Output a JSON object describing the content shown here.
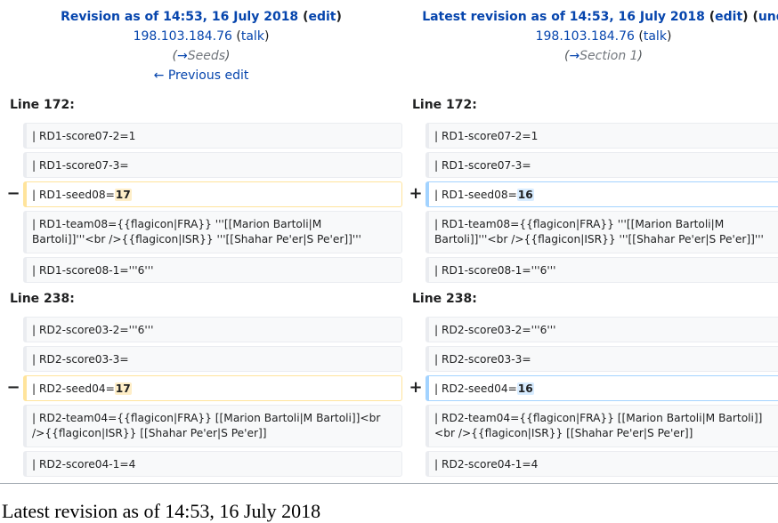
{
  "left": {
    "title": "Revision as of 14:53, 16 July 2018",
    "edit": "edit",
    "ip": "198.103.184.76",
    "talk": "talk",
    "comment_arrow": "→",
    "comment_section": "Seeds",
    "nav": "← Previous edit"
  },
  "right": {
    "title": "Latest revision as of 14:53, 16 July 2018",
    "edit": "edit",
    "undo": "und",
    "ip": "198.103.184.76",
    "talk": "talk",
    "comment_arrow": "→",
    "comment_section": "Section 1"
  },
  "blocks": [
    {
      "line_label_left": "Line 172:",
      "line_label_right": "Line 172:",
      "context_before": [
        "| RD1-score07-2=1",
        "| RD1-score07-3="
      ],
      "changed_prefix": "| RD1-seed08=",
      "removed_value": "17",
      "added_value": "16",
      "context_after": [
        "| RD1-team08={{flagicon|FRA}} '''[[Marion Bartoli|M Bartoli]]'''<br />{{flagicon|ISR}} '''[[Shahar Pe'er|S Pe'er]]'''",
        "| RD1-score08-1='''6'''"
      ]
    },
    {
      "line_label_left": "Line 238:",
      "line_label_right": "Line 238:",
      "context_before": [
        "| RD2-score03-2='''6'''",
        "| RD2-score03-3="
      ],
      "changed_prefix": "| RD2-seed04=",
      "removed_value": "17",
      "added_value": "16",
      "context_after": [
        "| RD2-team04={{flagicon|FRA}} [[Marion Bartoli|M Bartoli]]<br />{{flagicon|ISR}} [[Shahar Pe'er|S Pe'er]]",
        "| RD2-score04-1=4"
      ]
    }
  ],
  "markers": {
    "removed": "−",
    "added": "+"
  },
  "footer_title": "Latest revision as of 14:53, 16 July 2018"
}
